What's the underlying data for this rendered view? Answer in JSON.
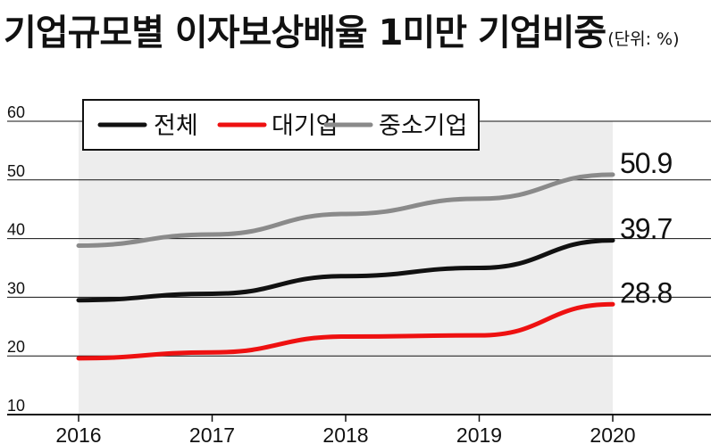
{
  "chart_data": {
    "type": "line",
    "title": "기업규모별 이자보상배율 1미만 기업비중",
    "unit_note": "(단위: %)",
    "x": [
      "2016",
      "2017",
      "2018",
      "2019",
      "2020"
    ],
    "ylim": [
      10,
      60
    ],
    "yticks": [
      "10",
      "20",
      "30",
      "40",
      "50",
      "60"
    ],
    "grid": true,
    "legend_position": "top-left",
    "series": [
      {
        "name": "전체",
        "color": "#111111",
        "values": [
          29.5,
          30.6,
          33.6,
          35.0,
          39.7
        ],
        "end_label": "39.7"
      },
      {
        "name": "대기업",
        "color": "#ee1111",
        "values": [
          19.6,
          20.6,
          23.3,
          23.5,
          28.8
        ],
        "end_label": "28.8"
      },
      {
        "name": "중소기업",
        "color": "#8a8a8a",
        "values": [
          38.8,
          40.7,
          44.2,
          46.8,
          50.9
        ],
        "end_label": "50.9"
      }
    ],
    "plot_bg": "#ededed",
    "shaded_between": [
      2016,
      2020
    ]
  }
}
